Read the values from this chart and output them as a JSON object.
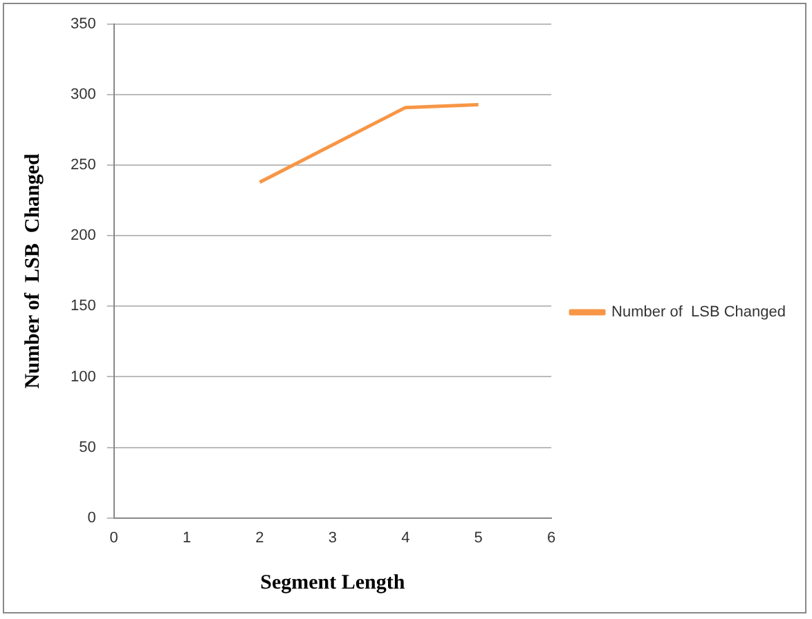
{
  "chart_data": {
    "type": "line",
    "xlabel": "Segment Length",
    "ylabel": "Number of  LSB  Changed",
    "x": [
      2,
      4,
      5
    ],
    "series": [
      {
        "name": "Number of  LSB Changed",
        "color": "#f79646",
        "values": [
          238,
          291,
          293
        ]
      }
    ],
    "xlim": [
      0,
      6
    ],
    "xticks": [
      0,
      1,
      2,
      3,
      4,
      5,
      6
    ],
    "ylim": [
      0,
      350
    ],
    "yticks": [
      0,
      50,
      100,
      150,
      200,
      250,
      300,
      350
    ],
    "grid": "y",
    "legend": "right",
    "marker": "none",
    "line_style": "solid"
  }
}
